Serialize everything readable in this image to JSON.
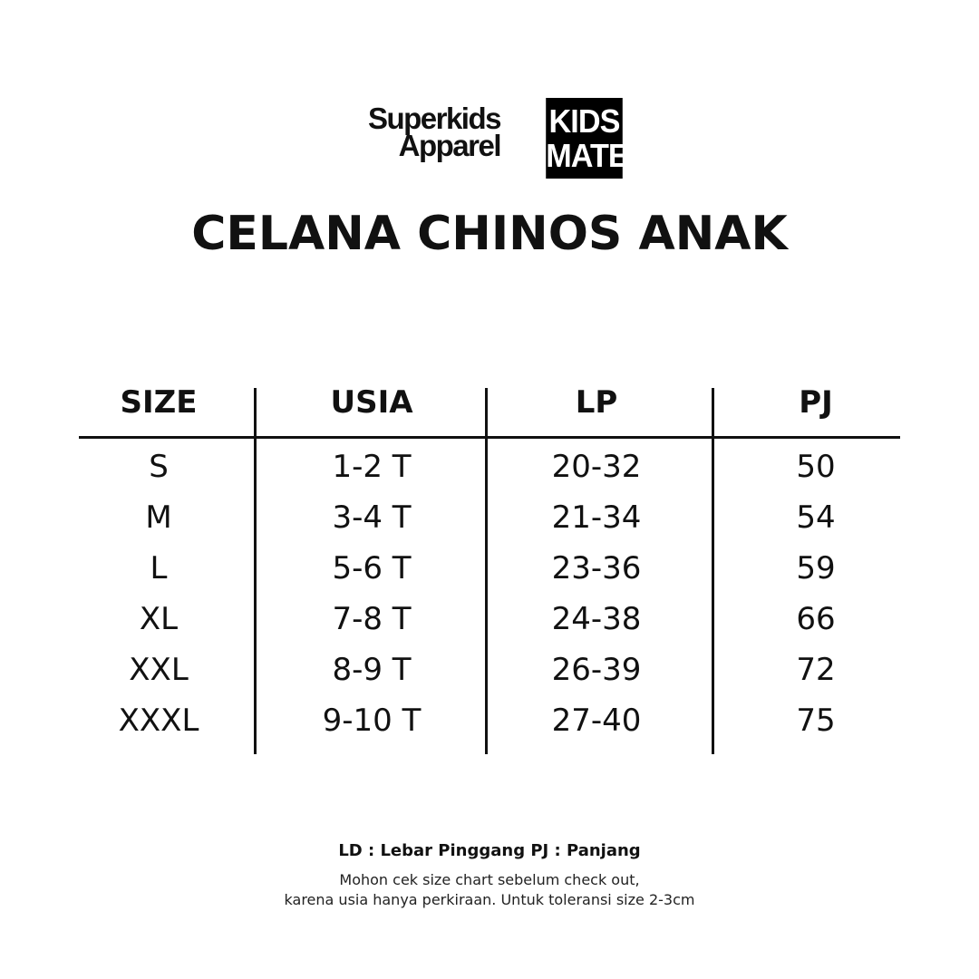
{
  "brands": {
    "left_logo": "Superkids Apparel",
    "left_line1": "Superkids",
    "left_line2": "Apparel",
    "right_logo_line1": "KIDS",
    "right_logo_line2": "MATE"
  },
  "title": "CELANA CHINOS ANAK",
  "table": {
    "headers": [
      "SIZE",
      "USIA",
      "LP",
      "PJ"
    ],
    "rows": [
      [
        "S",
        "1-2 T",
        "20-32",
        "50"
      ],
      [
        "M",
        "3-4 T",
        "21-34",
        "54"
      ],
      [
        "L",
        "5-6 T",
        "23-36",
        "59"
      ],
      [
        "XL",
        "7-8 T",
        "24-38",
        "66"
      ],
      [
        "XXL",
        "8-9 T",
        "26-39",
        "72"
      ],
      [
        "XXXL",
        "9-10 T",
        "27-40",
        "75"
      ]
    ]
  },
  "footer": {
    "legend": "LD : Lebar Pinggang PJ : Panjang",
    "note_line1": "Mohon cek size chart sebelum check out,",
    "note_line2": "karena usia hanya perkiraan. Untuk toleransi size 2-3cm"
  }
}
